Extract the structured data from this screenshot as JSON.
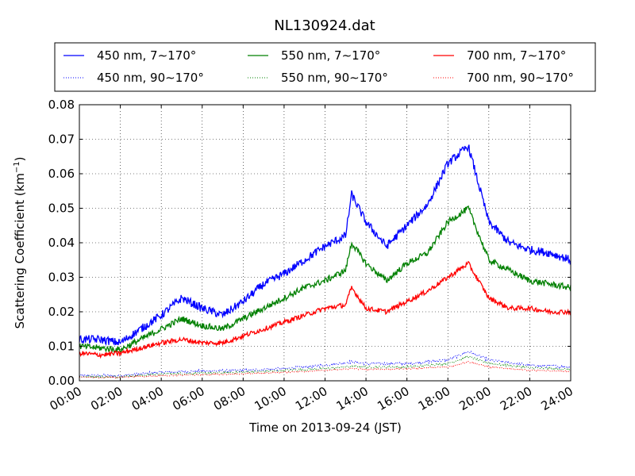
{
  "chart_data": {
    "type": "line",
    "title": "NL130924.dat",
    "xlabel": "Time on 2013-09-24 (JST)",
    "ylabel": "Scattering Coefficient (km",
    "ylabel_superscript": "−1",
    "ylabel_suffix": ")",
    "xlim": [
      0,
      24
    ],
    "ylim": [
      0,
      0.08
    ],
    "x_ticks": [
      0,
      2,
      4,
      6,
      8,
      10,
      12,
      14,
      16,
      18,
      20,
      22,
      24
    ],
    "x_tick_labels": [
      "00:00",
      "02:00",
      "04:00",
      "06:00",
      "08:00",
      "10:00",
      "12:00",
      "14:00",
      "16:00",
      "18:00",
      "20:00",
      "22:00",
      "24:00"
    ],
    "y_ticks": [
      0,
      0.01,
      0.02,
      0.03,
      0.04,
      0.05,
      0.06,
      0.07,
      0.08
    ],
    "y_tick_labels": [
      "0.00",
      "0.01",
      "0.02",
      "0.03",
      "0.04",
      "0.05",
      "0.06",
      "0.07",
      "0.08"
    ],
    "grid": true,
    "legend_position": "top",
    "series": [
      {
        "name": "450 nm, 7∼170°",
        "color": "#0000ff",
        "style": "solid",
        "noise": 0.0012,
        "x": [
          0,
          1,
          2,
          3,
          4,
          5,
          6,
          7,
          8,
          9,
          10,
          11,
          12,
          13,
          13.3,
          14,
          15,
          16,
          17,
          18,
          19,
          20,
          21,
          22,
          23,
          24
        ],
        "y": [
          0.012,
          0.012,
          0.011,
          0.015,
          0.019,
          0.024,
          0.021,
          0.019,
          0.023,
          0.028,
          0.031,
          0.035,
          0.039,
          0.042,
          0.054,
          0.046,
          0.039,
          0.045,
          0.051,
          0.063,
          0.068,
          0.046,
          0.04,
          0.038,
          0.037,
          0.035
        ]
      },
      {
        "name": "450 nm, 90∼170°",
        "color": "#0000ff",
        "style": "dotted",
        "noise": 0.0004,
        "x": [
          0,
          2,
          4,
          6,
          8,
          10,
          12,
          13.3,
          14,
          16,
          18,
          19,
          20,
          22,
          24
        ],
        "y": [
          0.0015,
          0.0015,
          0.0025,
          0.0028,
          0.003,
          0.0035,
          0.0045,
          0.0055,
          0.005,
          0.005,
          0.006,
          0.0085,
          0.006,
          0.0045,
          0.004
        ]
      },
      {
        "name": "550 nm, 7∼170°",
        "color": "#008000",
        "style": "solid",
        "noise": 0.0009,
        "x": [
          0,
          1,
          2,
          3,
          4,
          5,
          6,
          7,
          8,
          9,
          10,
          11,
          12,
          13,
          13.3,
          14,
          15,
          16,
          17,
          18,
          19,
          20,
          21,
          22,
          23,
          24
        ],
        "y": [
          0.01,
          0.0095,
          0.009,
          0.012,
          0.015,
          0.018,
          0.016,
          0.015,
          0.018,
          0.021,
          0.024,
          0.027,
          0.029,
          0.032,
          0.04,
          0.034,
          0.029,
          0.034,
          0.037,
          0.046,
          0.05,
          0.035,
          0.032,
          0.029,
          0.028,
          0.027
        ]
      },
      {
        "name": "550 nm, 90∼170°",
        "color": "#008000",
        "style": "dotted",
        "noise": 0.0003,
        "x": [
          0,
          2,
          4,
          6,
          8,
          10,
          12,
          13.3,
          14,
          16,
          18,
          19,
          20,
          22,
          24
        ],
        "y": [
          0.0012,
          0.0012,
          0.002,
          0.0022,
          0.0025,
          0.003,
          0.0035,
          0.0042,
          0.004,
          0.004,
          0.005,
          0.007,
          0.005,
          0.0038,
          0.0033
        ]
      },
      {
        "name": "700 nm, 7∼170°",
        "color": "#ff0000",
        "style": "solid",
        "noise": 0.0007,
        "x": [
          0,
          1,
          2,
          3,
          4,
          5,
          6,
          7,
          8,
          9,
          10,
          11,
          12,
          13,
          13.3,
          14,
          15,
          16,
          17,
          18,
          19,
          20,
          21,
          22,
          23,
          24
        ],
        "y": [
          0.008,
          0.0075,
          0.008,
          0.0095,
          0.011,
          0.012,
          0.011,
          0.011,
          0.013,
          0.015,
          0.017,
          0.019,
          0.021,
          0.022,
          0.027,
          0.021,
          0.02,
          0.023,
          0.026,
          0.03,
          0.034,
          0.024,
          0.021,
          0.021,
          0.02,
          0.02
        ]
      },
      {
        "name": "700 nm, 90∼170°",
        "color": "#ff0000",
        "style": "dotted",
        "noise": 0.0002,
        "x": [
          0,
          2,
          4,
          6,
          8,
          10,
          12,
          13.3,
          14,
          16,
          18,
          19,
          20,
          22,
          24
        ],
        "y": [
          0.001,
          0.001,
          0.0015,
          0.0018,
          0.002,
          0.0025,
          0.003,
          0.0035,
          0.0033,
          0.0035,
          0.004,
          0.0055,
          0.004,
          0.003,
          0.0028
        ]
      }
    ]
  }
}
